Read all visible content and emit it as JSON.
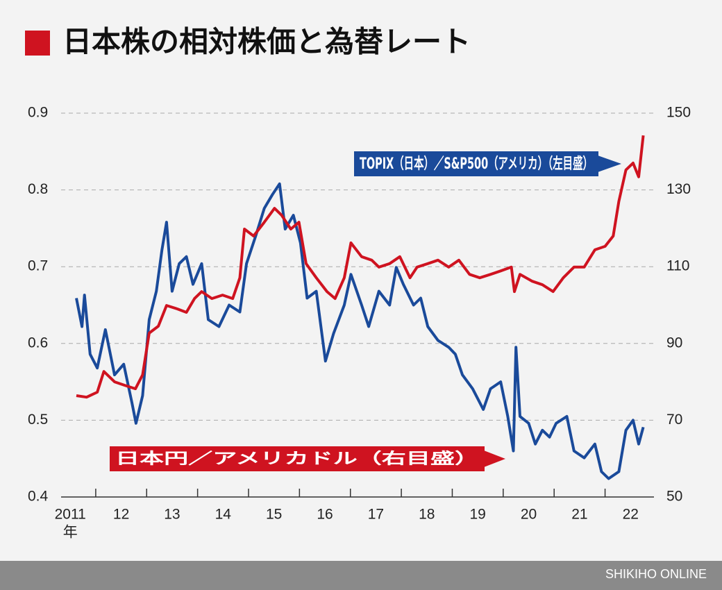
{
  "chart_data": {
    "type": "line",
    "title": "日本株の相対株価と為替レート",
    "footer": "SHIKIHO ONLINE",
    "xlim": [
      2011.32,
      2022.96
    ],
    "xticks": [
      2012,
      2013,
      2014,
      2015,
      2016,
      2017,
      2018,
      2019,
      2020,
      2021,
      2022
    ],
    "x_labels": [
      "2011",
      "12",
      "13",
      "14",
      "15",
      "16",
      "17",
      "18",
      "19",
      "20",
      "21",
      "22"
    ],
    "x_label_unit": "年",
    "ylim": [
      0.4,
      0.9
    ],
    "yticks": [
      0.4,
      0.5,
      0.6,
      0.7,
      0.8,
      0.9
    ],
    "y2lim": [
      50,
      150
    ],
    "y2ticks": [
      50,
      70,
      90,
      110,
      130,
      150
    ],
    "grid": true,
    "series": [
      {
        "name": "TOPIX（日本）／S&P500（アメリカ）（左目盛）",
        "color": "#1a4a9a",
        "axis": "y",
        "x": [
          2011.62,
          2011.73,
          2011.78,
          2011.89,
          2012.03,
          2012.19,
          2012.37,
          2012.55,
          2012.71,
          2012.79,
          2012.92,
          2013.05,
          2013.19,
          2013.3,
          2013.39,
          2013.5,
          2013.64,
          2013.78,
          2013.91,
          2014.08,
          2014.21,
          2014.42,
          2014.62,
          2014.83,
          2014.96,
          2015.14,
          2015.31,
          2015.47,
          2015.61,
          2015.72,
          2015.88,
          2016.02,
          2016.15,
          2016.33,
          2016.51,
          2016.67,
          2016.88,
          2017.01,
          2017.22,
          2017.36,
          2017.56,
          2017.77,
          2017.9,
          2018.04,
          2018.24,
          2018.38,
          2018.52,
          2018.72,
          2018.93,
          2019.06,
          2019.2,
          2019.4,
          2019.61,
          2019.75,
          2019.95,
          2020.09,
          2020.2,
          2020.25,
          2020.33,
          2020.5,
          2020.63,
          2020.77,
          2020.91,
          2021.04,
          2021.25,
          2021.39,
          2021.59,
          2021.8,
          2021.93,
          2022.07,
          2022.27,
          2022.41,
          2022.55,
          2022.66,
          2022.75
        ],
        "values": [
          0.659,
          0.622,
          0.663,
          0.586,
          0.568,
          0.618,
          0.559,
          0.573,
          0.523,
          0.496,
          0.532,
          0.631,
          0.668,
          0.722,
          0.758,
          0.668,
          0.704,
          0.713,
          0.677,
          0.704,
          0.631,
          0.622,
          0.65,
          0.641,
          0.704,
          0.74,
          0.776,
          0.794,
          0.808,
          0.749,
          0.767,
          0.731,
          0.659,
          0.668,
          0.577,
          0.613,
          0.65,
          0.69,
          0.65,
          0.622,
          0.668,
          0.65,
          0.699,
          0.677,
          0.65,
          0.659,
          0.622,
          0.604,
          0.595,
          0.586,
          0.559,
          0.541,
          0.514,
          0.541,
          0.55,
          0.505,
          0.46,
          0.595,
          0.505,
          0.496,
          0.469,
          0.487,
          0.478,
          0.496,
          0.505,
          0.46,
          0.451,
          0.469,
          0.433,
          0.424,
          0.433,
          0.487,
          0.5,
          0.469,
          0.491
        ]
      },
      {
        "name": "日本円／アメリカドル（右目盛）",
        "color": "#cf1320",
        "axis": "y2",
        "x": [
          2011.62,
          2011.82,
          2012.03,
          2012.16,
          2012.37,
          2012.57,
          2012.78,
          2012.92,
          2013.05,
          2013.23,
          2013.39,
          2013.6,
          2013.78,
          2013.94,
          2014.08,
          2014.28,
          2014.49,
          2014.69,
          2014.83,
          2014.92,
          2015.1,
          2015.31,
          2015.51,
          2015.65,
          2015.83,
          2015.99,
          2016.13,
          2016.33,
          2016.54,
          2016.7,
          2016.88,
          2017.01,
          2017.22,
          2017.42,
          2017.56,
          2017.77,
          2017.97,
          2018.17,
          2018.31,
          2018.52,
          2018.72,
          2018.93,
          2019.13,
          2019.34,
          2019.54,
          2019.75,
          2019.95,
          2020.16,
          2020.22,
          2020.33,
          2020.57,
          2020.77,
          2020.98,
          2021.18,
          2021.39,
          2021.59,
          2021.8,
          2022.0,
          2022.16,
          2022.27,
          2022.41,
          2022.55,
          2022.66,
          2022.75
        ],
        "values": [
          76.4,
          76.0,
          77.3,
          82.7,
          80.0,
          79.1,
          78.2,
          81.8,
          92.7,
          94.5,
          99.9,
          99.0,
          98.1,
          101.7,
          103.5,
          101.7,
          102.6,
          101.7,
          107.1,
          119.8,
          118.0,
          121.6,
          125.2,
          123.4,
          119.8,
          121.6,
          110.8,
          107.1,
          103.5,
          101.7,
          107.1,
          116.2,
          112.6,
          111.7,
          109.9,
          110.8,
          112.6,
          107.1,
          109.9,
          110.8,
          111.7,
          109.9,
          111.7,
          108.0,
          107.1,
          108.0,
          108.9,
          109.9,
          103.5,
          108.0,
          106.2,
          105.3,
          103.5,
          107.1,
          109.9,
          109.9,
          114.4,
          115.3,
          118.0,
          127.0,
          135.2,
          137.0,
          133.4,
          144.2
        ]
      }
    ]
  }
}
